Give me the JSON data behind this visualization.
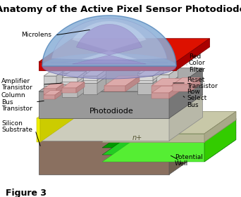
{
  "title": "Anatomy of the Active Pixel Sensor Photodiode",
  "title_fontsize": 9.5,
  "figure3_text": "Figure 3",
  "background_color": "#ffffff",
  "labels": {
    "microlens": "Microlens",
    "red_color_filter": "Red\nColor\nFilter",
    "reset_transistor": "Reset\nTransistor",
    "amplifier_transistor": "Amplifier\nTransistor",
    "row_select_bus": "Row\nSelect\nBus",
    "column_bus_transistor": "Column\nBus\nTransistor",
    "photodiode": "Photodiode",
    "silicon_substrate": "Silicon\nSubstrate",
    "potential_well": "Potential\nWell",
    "n_plus": "n+"
  },
  "colors": {
    "white": "#ffffff",
    "black": "#000000"
  }
}
